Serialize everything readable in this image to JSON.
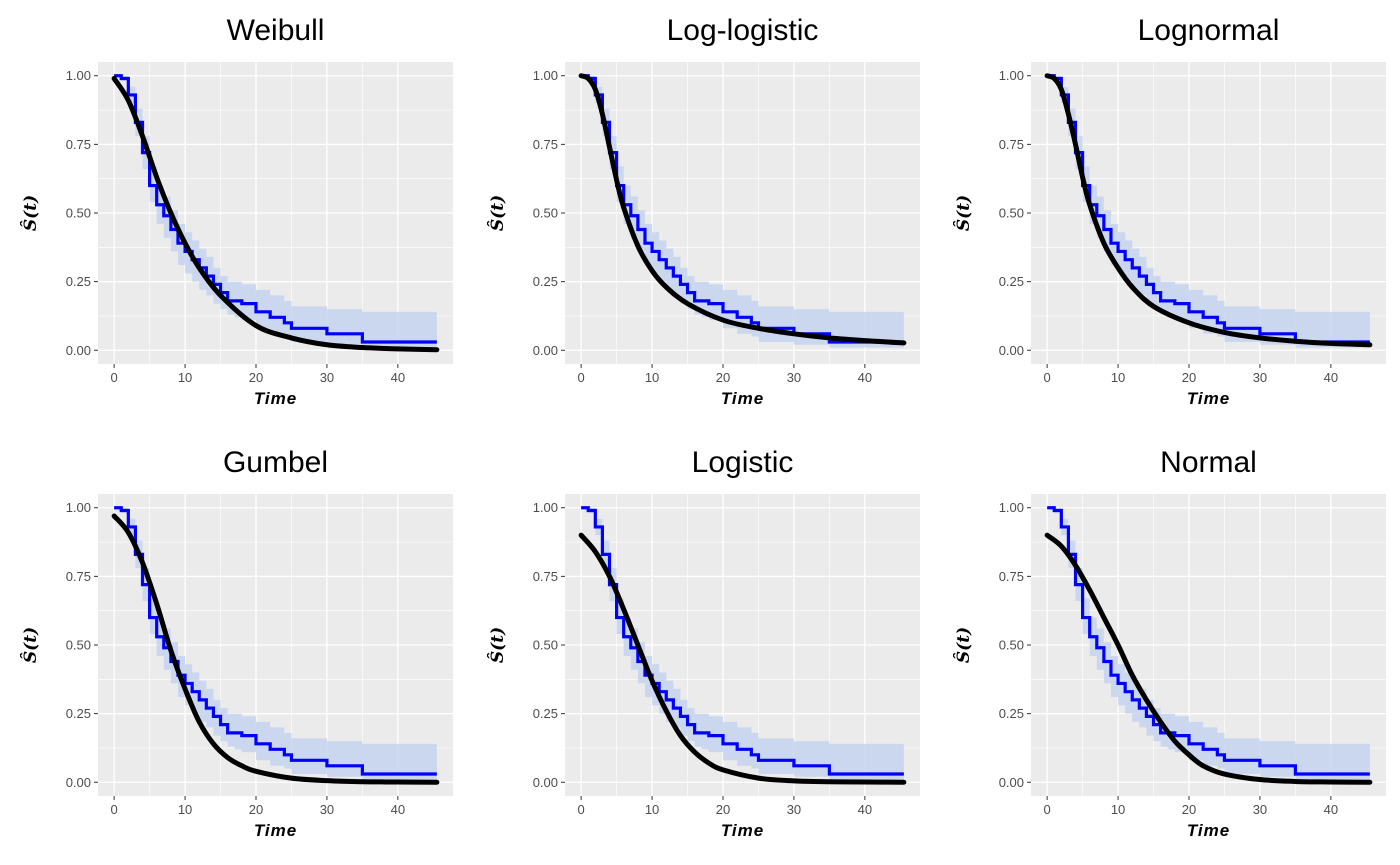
{
  "chart_data": [
    {
      "type": "line",
      "title": "Weibull",
      "xlabel": "Time",
      "ylabel": "Ŝ(t)",
      "xlim": [
        0,
        45.5
      ],
      "ylim": [
        0,
        1
      ],
      "xticks": [
        0,
        10,
        20,
        30,
        40
      ],
      "yticks": [
        "0.00",
        "0.25",
        "0.50",
        "0.75",
        "1.00"
      ],
      "series": [
        {
          "role": "kaplan-meier",
          "color": "#0000ff",
          "band_color": "#c6d3ee",
          "x": [
            0,
            0.5,
            1,
            2,
            3,
            4,
            5,
            6,
            7,
            8,
            9,
            10,
            11,
            12,
            13,
            14,
            15,
            16,
            17,
            18,
            20,
            22,
            24,
            25,
            30,
            35,
            45.5
          ],
          "y": [
            1,
            1,
            0.99,
            0.93,
            0.83,
            0.72,
            0.6,
            0.53,
            0.49,
            0.44,
            0.39,
            0.36,
            0.33,
            0.3,
            0.27,
            0.24,
            0.21,
            0.18,
            0.18,
            0.17,
            0.14,
            0.12,
            0.1,
            0.08,
            0.06,
            0.03,
            0.03
          ],
          "lower": [
            1,
            1,
            0.98,
            0.9,
            0.78,
            0.66,
            0.54,
            0.46,
            0.41,
            0.36,
            0.31,
            0.28,
            0.25,
            0.22,
            0.2,
            0.17,
            0.15,
            0.13,
            0.12,
            0.11,
            0.08,
            0.06,
            0.05,
            0.03,
            0.02,
            0.01,
            0.01
          ],
          "upper": [
            1,
            1,
            1,
            0.96,
            0.88,
            0.78,
            0.67,
            0.6,
            0.56,
            0.51,
            0.46,
            0.43,
            0.4,
            0.37,
            0.34,
            0.3,
            0.27,
            0.25,
            0.25,
            0.24,
            0.22,
            0.2,
            0.18,
            0.16,
            0.15,
            0.14,
            0.14
          ]
        },
        {
          "role": "fitted",
          "color": "#000000",
          "x": [
            0,
            2,
            4,
            6,
            8,
            10,
            12,
            15,
            20,
            25,
            30,
            35,
            40,
            45.5
          ],
          "y": [
            0.99,
            0.91,
            0.78,
            0.63,
            0.5,
            0.39,
            0.3,
            0.2,
            0.09,
            0.045,
            0.02,
            0.01,
            0.005,
            0.002
          ]
        }
      ]
    },
    {
      "type": "line",
      "title": "Log-logistic",
      "xlabel": "Time",
      "ylabel": "Ŝ(t)",
      "xlim": [
        0,
        45.5
      ],
      "ylim": [
        0,
        1
      ],
      "xticks": [
        0,
        10,
        20,
        30,
        40
      ],
      "yticks": [
        "0.00",
        "0.25",
        "0.50",
        "0.75",
        "1.00"
      ],
      "series": [
        {
          "role": "kaplan-meier",
          "color": "#0000ff",
          "band_color": "#c6d3ee",
          "x": [
            0,
            0.5,
            1,
            2,
            3,
            4,
            5,
            6,
            7,
            8,
            9,
            10,
            11,
            12,
            13,
            14,
            15,
            16,
            17,
            18,
            20,
            22,
            24,
            25,
            30,
            35,
            45.5
          ],
          "y": [
            1,
            1,
            0.99,
            0.93,
            0.83,
            0.72,
            0.6,
            0.53,
            0.49,
            0.44,
            0.39,
            0.36,
            0.33,
            0.3,
            0.27,
            0.24,
            0.21,
            0.18,
            0.18,
            0.17,
            0.14,
            0.12,
            0.1,
            0.08,
            0.06,
            0.03,
            0.03
          ],
          "lower": [
            1,
            1,
            0.98,
            0.9,
            0.78,
            0.66,
            0.54,
            0.46,
            0.41,
            0.36,
            0.31,
            0.28,
            0.25,
            0.22,
            0.2,
            0.17,
            0.15,
            0.13,
            0.12,
            0.11,
            0.08,
            0.06,
            0.05,
            0.03,
            0.02,
            0.01,
            0.01
          ],
          "upper": [
            1,
            1,
            1,
            0.96,
            0.88,
            0.78,
            0.67,
            0.6,
            0.56,
            0.51,
            0.46,
            0.43,
            0.4,
            0.37,
            0.34,
            0.3,
            0.27,
            0.25,
            0.25,
            0.24,
            0.22,
            0.2,
            0.18,
            0.16,
            0.15,
            0.14,
            0.14
          ]
        },
        {
          "role": "fitted",
          "color": "#000000",
          "x": [
            0,
            1,
            2,
            3,
            4,
            5,
            6,
            8,
            10,
            12,
            15,
            20,
            25,
            30,
            35,
            40,
            45.5
          ],
          "y": [
            1,
            0.99,
            0.95,
            0.86,
            0.74,
            0.62,
            0.52,
            0.38,
            0.29,
            0.23,
            0.17,
            0.11,
            0.08,
            0.06,
            0.045,
            0.035,
            0.027
          ]
        }
      ]
    },
    {
      "type": "line",
      "title": "Lognormal",
      "xlabel": "Time",
      "ylabel": "Ŝ(t)",
      "xlim": [
        0,
        45.5
      ],
      "ylim": [
        0,
        1
      ],
      "xticks": [
        0,
        10,
        20,
        30,
        40
      ],
      "yticks": [
        "0.00",
        "0.25",
        "0.50",
        "0.75",
        "1.00"
      ],
      "series": [
        {
          "role": "kaplan-meier",
          "color": "#0000ff",
          "band_color": "#c6d3ee",
          "x": [
            0,
            0.5,
            1,
            2,
            3,
            4,
            5,
            6,
            7,
            8,
            9,
            10,
            11,
            12,
            13,
            14,
            15,
            16,
            17,
            18,
            20,
            22,
            24,
            25,
            30,
            35,
            45.5
          ],
          "y": [
            1,
            1,
            0.99,
            0.93,
            0.83,
            0.72,
            0.6,
            0.53,
            0.49,
            0.44,
            0.39,
            0.36,
            0.33,
            0.3,
            0.27,
            0.24,
            0.21,
            0.18,
            0.18,
            0.17,
            0.14,
            0.12,
            0.1,
            0.08,
            0.06,
            0.03,
            0.03
          ],
          "lower": [
            1,
            1,
            0.98,
            0.9,
            0.78,
            0.66,
            0.54,
            0.46,
            0.41,
            0.36,
            0.31,
            0.28,
            0.25,
            0.22,
            0.2,
            0.17,
            0.15,
            0.13,
            0.12,
            0.11,
            0.08,
            0.06,
            0.05,
            0.03,
            0.02,
            0.01,
            0.01
          ],
          "upper": [
            1,
            1,
            1,
            0.96,
            0.88,
            0.78,
            0.67,
            0.6,
            0.56,
            0.51,
            0.46,
            0.43,
            0.4,
            0.37,
            0.34,
            0.3,
            0.27,
            0.25,
            0.25,
            0.24,
            0.22,
            0.2,
            0.18,
            0.16,
            0.15,
            0.14,
            0.14
          ]
        },
        {
          "role": "fitted",
          "color": "#000000",
          "x": [
            0,
            1,
            2,
            3,
            4,
            5,
            6,
            8,
            10,
            12,
            15,
            20,
            25,
            30,
            35,
            40,
            45.5
          ],
          "y": [
            1,
            0.99,
            0.95,
            0.86,
            0.75,
            0.63,
            0.53,
            0.39,
            0.3,
            0.23,
            0.16,
            0.1,
            0.065,
            0.045,
            0.033,
            0.025,
            0.02
          ]
        }
      ]
    },
    {
      "type": "line",
      "title": "Gumbel",
      "xlabel": "Time",
      "ylabel": "Ŝ(t)",
      "xlim": [
        0,
        45.5
      ],
      "ylim": [
        0,
        1
      ],
      "xticks": [
        0,
        10,
        20,
        30,
        40
      ],
      "yticks": [
        "0.00",
        "0.25",
        "0.50",
        "0.75",
        "1.00"
      ],
      "series": [
        {
          "role": "kaplan-meier",
          "color": "#0000ff",
          "band_color": "#c6d3ee",
          "x": [
            0,
            0.5,
            1,
            2,
            3,
            4,
            5,
            6,
            7,
            8,
            9,
            10,
            11,
            12,
            13,
            14,
            15,
            16,
            17,
            18,
            20,
            22,
            24,
            25,
            30,
            35,
            45.5
          ],
          "y": [
            1,
            1,
            0.99,
            0.93,
            0.83,
            0.72,
            0.6,
            0.53,
            0.49,
            0.44,
            0.39,
            0.36,
            0.33,
            0.3,
            0.27,
            0.24,
            0.21,
            0.18,
            0.18,
            0.17,
            0.14,
            0.12,
            0.1,
            0.08,
            0.06,
            0.03,
            0.03
          ],
          "lower": [
            1,
            1,
            0.98,
            0.9,
            0.78,
            0.66,
            0.54,
            0.46,
            0.41,
            0.36,
            0.31,
            0.28,
            0.25,
            0.22,
            0.2,
            0.17,
            0.15,
            0.13,
            0.12,
            0.11,
            0.08,
            0.06,
            0.05,
            0.03,
            0.02,
            0.01,
            0.01
          ],
          "upper": [
            1,
            1,
            1,
            0.96,
            0.88,
            0.78,
            0.67,
            0.6,
            0.56,
            0.51,
            0.46,
            0.43,
            0.4,
            0.37,
            0.34,
            0.3,
            0.27,
            0.25,
            0.25,
            0.24,
            0.22,
            0.2,
            0.18,
            0.16,
            0.15,
            0.14,
            0.14
          ]
        },
        {
          "role": "fitted",
          "color": "#000000",
          "x": [
            0,
            2,
            4,
            6,
            8,
            10,
            12,
            14,
            16,
            18,
            20,
            25,
            30,
            35,
            40,
            45.5
          ],
          "y": [
            0.97,
            0.91,
            0.8,
            0.65,
            0.48,
            0.34,
            0.22,
            0.14,
            0.09,
            0.06,
            0.04,
            0.015,
            0.006,
            0.002,
            0.001,
            0
          ]
        }
      ]
    },
    {
      "type": "line",
      "title": "Logistic",
      "xlabel": "Time",
      "ylabel": "Ŝ(t)",
      "xlim": [
        0,
        45.5
      ],
      "ylim": [
        0,
        1
      ],
      "xticks": [
        0,
        10,
        20,
        30,
        40
      ],
      "yticks": [
        "0.00",
        "0.25",
        "0.50",
        "0.75",
        "1.00"
      ],
      "series": [
        {
          "role": "kaplan-meier",
          "color": "#0000ff",
          "band_color": "#c6d3ee",
          "x": [
            0,
            0.5,
            1,
            2,
            3,
            4,
            5,
            6,
            7,
            8,
            9,
            10,
            11,
            12,
            13,
            14,
            15,
            16,
            17,
            18,
            20,
            22,
            24,
            25,
            30,
            35,
            45.5
          ],
          "y": [
            1,
            1,
            0.99,
            0.93,
            0.83,
            0.72,
            0.6,
            0.53,
            0.49,
            0.44,
            0.39,
            0.36,
            0.33,
            0.3,
            0.27,
            0.24,
            0.21,
            0.18,
            0.18,
            0.17,
            0.14,
            0.12,
            0.1,
            0.08,
            0.06,
            0.03,
            0.03
          ],
          "lower": [
            1,
            1,
            0.98,
            0.9,
            0.78,
            0.66,
            0.54,
            0.46,
            0.41,
            0.36,
            0.31,
            0.28,
            0.25,
            0.22,
            0.2,
            0.17,
            0.15,
            0.13,
            0.12,
            0.11,
            0.08,
            0.06,
            0.05,
            0.03,
            0.02,
            0.01,
            0.01
          ],
          "upper": [
            1,
            1,
            1,
            0.96,
            0.88,
            0.78,
            0.67,
            0.6,
            0.56,
            0.51,
            0.46,
            0.43,
            0.4,
            0.37,
            0.34,
            0.3,
            0.27,
            0.25,
            0.25,
            0.24,
            0.22,
            0.2,
            0.18,
            0.16,
            0.15,
            0.14,
            0.14
          ]
        },
        {
          "role": "fitted",
          "color": "#000000",
          "x": [
            0,
            2,
            4,
            6,
            8,
            10,
            12,
            14,
            16,
            18,
            20,
            25,
            30,
            35,
            40,
            45.5
          ],
          "y": [
            0.9,
            0.84,
            0.75,
            0.63,
            0.5,
            0.37,
            0.26,
            0.17,
            0.11,
            0.07,
            0.045,
            0.015,
            0.005,
            0.002,
            0.001,
            0
          ]
        }
      ]
    },
    {
      "type": "line",
      "title": "Normal",
      "xlabel": "Time",
      "ylabel": "Ŝ(t)",
      "xlim": [
        0,
        45.5
      ],
      "ylim": [
        0,
        1
      ],
      "xticks": [
        0,
        10,
        20,
        30,
        40
      ],
      "yticks": [
        "0.00",
        "0.25",
        "0.50",
        "0.75",
        "1.00"
      ],
      "series": [
        {
          "role": "kaplan-meier",
          "color": "#0000ff",
          "band_color": "#c6d3ee",
          "x": [
            0,
            0.5,
            1,
            2,
            3,
            4,
            5,
            6,
            7,
            8,
            9,
            10,
            11,
            12,
            13,
            14,
            15,
            16,
            17,
            18,
            20,
            22,
            24,
            25,
            30,
            35,
            45.5
          ],
          "y": [
            1,
            1,
            0.99,
            0.93,
            0.83,
            0.72,
            0.6,
            0.53,
            0.49,
            0.44,
            0.39,
            0.36,
            0.33,
            0.3,
            0.27,
            0.24,
            0.21,
            0.18,
            0.18,
            0.17,
            0.14,
            0.12,
            0.1,
            0.08,
            0.06,
            0.03,
            0.03
          ],
          "lower": [
            1,
            1,
            0.98,
            0.9,
            0.78,
            0.66,
            0.54,
            0.46,
            0.41,
            0.36,
            0.31,
            0.28,
            0.25,
            0.22,
            0.2,
            0.17,
            0.15,
            0.13,
            0.12,
            0.11,
            0.08,
            0.06,
            0.05,
            0.03,
            0.02,
            0.01,
            0.01
          ],
          "upper": [
            1,
            1,
            1,
            0.96,
            0.88,
            0.78,
            0.67,
            0.6,
            0.56,
            0.51,
            0.46,
            0.43,
            0.4,
            0.37,
            0.34,
            0.3,
            0.27,
            0.25,
            0.25,
            0.24,
            0.22,
            0.2,
            0.18,
            0.16,
            0.15,
            0.14,
            0.14
          ]
        },
        {
          "role": "fitted",
          "color": "#000000",
          "x": [
            0,
            2,
            4,
            6,
            8,
            10,
            12,
            14,
            16,
            18,
            20,
            22,
            25,
            30,
            35,
            40,
            45.5
          ],
          "y": [
            0.9,
            0.86,
            0.79,
            0.7,
            0.6,
            0.5,
            0.39,
            0.3,
            0.22,
            0.15,
            0.1,
            0.06,
            0.03,
            0.01,
            0.003,
            0.001,
            0
          ]
        }
      ]
    }
  ]
}
